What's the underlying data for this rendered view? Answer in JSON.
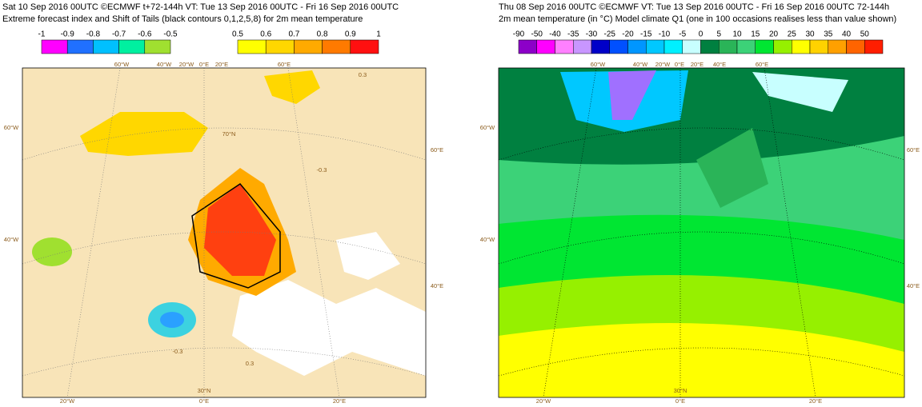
{
  "panels": [
    {
      "title": "Sat 10 Sep 2016 00UTC ©ECMWF t+72-144h  VT: Tue 13 Sep 2016 00UTC - Fri 16 Sep 2016 00UTC",
      "subtitle": "Extreme forecast index and Shift of Tails (black contours 0,1,2,5,8) for 2m mean temperature",
      "colorbars": [
        {
          "labels": [
            "-1",
            "-0.9",
            "-0.8",
            "-0.7",
            "-0.6",
            "-0.5"
          ],
          "colors": [
            "#ff00ff",
            "#2070ff",
            "#00c0ff",
            "#00f0a0",
            "#a0e030"
          ]
        },
        {
          "labels": [
            "0.5",
            "0.6",
            "0.7",
            "0.8",
            "0.9",
            "1"
          ],
          "colors": [
            "#ffff00",
            "#ffd700",
            "#ffaa00",
            "#ff7a00",
            "#ff1010"
          ]
        }
      ],
      "map_labels": [
        "60°W",
        "40°W",
        "20°W",
        "0°E",
        "20°E",
        "60°E",
        "60°W",
        "40°W",
        "60°E",
        "40°E",
        "20°W",
        "0°E",
        "20°E",
        "70°N",
        "30°N",
        "-0.3",
        "0.3",
        "-0.3",
        "0.3"
      ]
    },
    {
      "title": "Thu 08 Sep 2016 00UTC ©ECMWF VT: Tue 13 Sep 2016 00UTC - Fri 16 Sep 2016 00UTC  72-144h",
      "subtitle": "2m mean temperature (in °C)  Model climate Q1 (one in 100 occasions realises less than value shown)",
      "colorbars": [
        {
          "labels": [
            "-90",
            "-50",
            "-40",
            "-35",
            "-30",
            "-25",
            "-20",
            "-15",
            "-10",
            "-5",
            "0",
            "5",
            "10",
            "15",
            "20",
            "25",
            "30",
            "35",
            "40",
            "50"
          ],
          "colors": [
            "#8c00c8",
            "#ff00ff",
            "#ff80ff",
            "#c896ff",
            "#0000c8",
            "#0050ff",
            "#0096ff",
            "#00c8ff",
            "#00f0ff",
            "#c8ffff",
            "#008040",
            "#2ab458",
            "#3cd278",
            "#00e632",
            "#96f000",
            "#ffff00",
            "#ffd200",
            "#ffa000",
            "#ff6400",
            "#ff1e00"
          ]
        }
      ],
      "map_labels": [
        "60°W",
        "40°W",
        "20°W",
        "0°E",
        "20°E",
        "40°E",
        "60°E",
        "60°W",
        "40°W",
        "60°E",
        "40°E",
        "20°W",
        "0°E",
        "20°E",
        "30°N"
      ]
    }
  ]
}
